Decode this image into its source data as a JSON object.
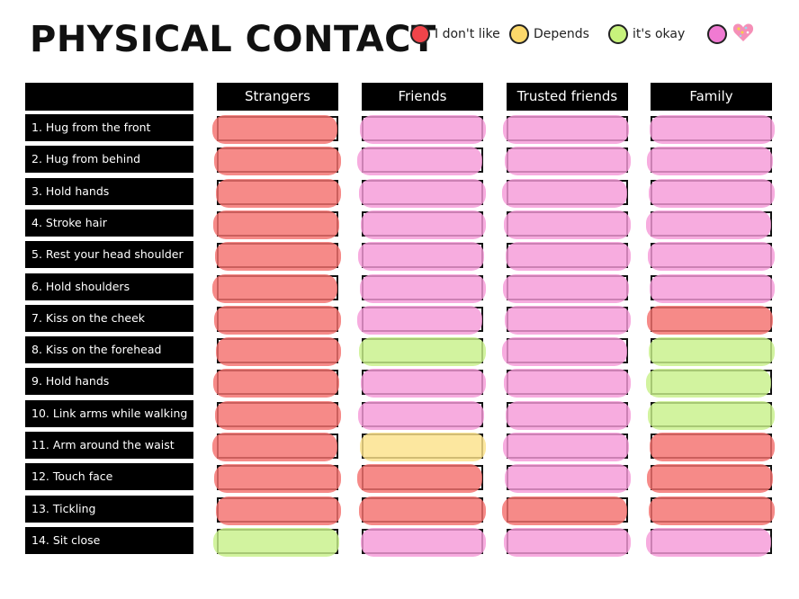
{
  "title": "PHYSICAL CONTACT",
  "legend": [
    {
      "label": "I don't like",
      "color": "#f0444a",
      "icon": "circle-swatch"
    },
    {
      "label": "Depends",
      "color": "#fcd86a",
      "icon": "circle-swatch"
    },
    {
      "label": "it's okay",
      "color": "#c7f27c",
      "icon": "circle-swatch"
    },
    {
      "label": "",
      "color": "#f07ad2",
      "icon": "heart-icon"
    }
  ],
  "colors": {
    "I don't like": "#f4706e",
    "Depends": "#fbe28a",
    "it's okay": "#c8f08a",
    "heart": "#f59ad8",
    "heart_row_bg": "#d46a6a"
  },
  "columns": [
    "Strangers",
    "Friends",
    "Trusted friends",
    "Family"
  ],
  "rows": [
    {
      "label": "1. Hug from the front",
      "ratings": [
        "I don't like",
        "heart",
        "heart",
        "heart"
      ]
    },
    {
      "label": "2. Hug from behind",
      "ratings": [
        "I don't like",
        "heart",
        "heart",
        "heart"
      ]
    },
    {
      "label": "3. Hold hands",
      "ratings": [
        "I don't like",
        "heart",
        "heart",
        "heart"
      ]
    },
    {
      "label": "4. Stroke hair",
      "ratings": [
        "I don't like",
        "heart",
        "heart",
        "heart"
      ]
    },
    {
      "label": "5. Rest your head shoulder",
      "ratings": [
        "I don't like",
        "heart",
        "heart",
        "heart"
      ]
    },
    {
      "label": "6. Hold shoulders",
      "ratings": [
        "I don't like",
        "heart",
        "heart",
        "heart"
      ]
    },
    {
      "label": "7. Kiss on the cheek",
      "ratings": [
        "I don't like",
        "heart",
        "heart",
        "I don't like"
      ]
    },
    {
      "label": "8. Kiss  on the forehead",
      "ratings": [
        "I don't like",
        "it's okay",
        "heart",
        "it's okay"
      ]
    },
    {
      "label": "9. Hold hands",
      "ratings": [
        "I don't like",
        "heart",
        "heart",
        "it's okay"
      ]
    },
    {
      "label": "10. Link arms while walking",
      "ratings": [
        "I don't like",
        "heart",
        "heart",
        "it's okay"
      ]
    },
    {
      "label": "11. Arm around the waist",
      "ratings": [
        "I don't like",
        "Depends",
        "heart",
        "I don't like"
      ]
    },
    {
      "label": "12. Touch face",
      "ratings": [
        "I don't like",
        "I don't like",
        "heart",
        "I don't like"
      ]
    },
    {
      "label": "13. Tickling",
      "ratings": [
        "I don't like",
        "I don't like",
        "I don't like",
        "I don't like"
      ]
    },
    {
      "label": "14. Sit close",
      "ratings": [
        "it's okay",
        "heart",
        "heart",
        "heart"
      ]
    }
  ]
}
